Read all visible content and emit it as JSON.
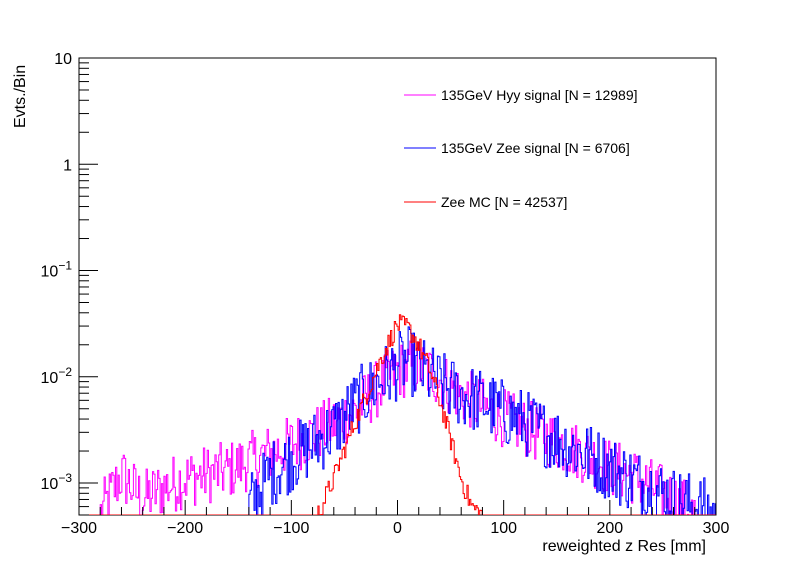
{
  "chart_data": {
    "type": "line",
    "style": "histogram-steps",
    "title": "",
    "xlabel": "reweighted z Res [mm]",
    "ylabel": "Evts./Bin",
    "xlim": [
      -300,
      300
    ],
    "ylim": [
      0.0005,
      10
    ],
    "yscale": "log",
    "grid": false,
    "x_ticks": [
      -300,
      -200,
      -100,
      0,
      100,
      200,
      300
    ],
    "x_tick_labels": [
      "−300",
      "−200",
      "−100",
      "0",
      "100",
      "200",
      "300"
    ],
    "y_tick_labels": [
      {
        "value": 10,
        "base": "10",
        "exp": ""
      },
      {
        "value": 1,
        "base": "1",
        "exp": ""
      },
      {
        "value": 0.1,
        "base": "10",
        "exp": "−1"
      },
      {
        "value": 0.01,
        "base": "10",
        "exp": "−2"
      },
      {
        "value": 0.001,
        "base": "10",
        "exp": "−3"
      }
    ],
    "legend_position": "top-right",
    "series": [
      {
        "name": "135GeV Hyy signal [N = 12989]",
        "color": "#ff00ff",
        "x": [
          -280,
          -260,
          -240,
          -220,
          -200,
          -180,
          -160,
          -140,
          -120,
          -100,
          -80,
          -60,
          -40,
          -20,
          0,
          20,
          40,
          60,
          80,
          100,
          120,
          140,
          160,
          180,
          200,
          220,
          240,
          260,
          280
        ],
        "values": [
          0.0005,
          0.0012,
          0.0007,
          0.0009,
          0.0011,
          0.0012,
          0.0013,
          0.0016,
          0.0019,
          0.0023,
          0.0028,
          0.0036,
          0.0048,
          0.0075,
          0.0115,
          0.0125,
          0.0095,
          0.0068,
          0.0052,
          0.0041,
          0.0033,
          0.0027,
          0.0022,
          0.0018,
          0.0014,
          0.0012,
          0.0009,
          0.0007,
          0.0005
        ]
      },
      {
        "name": "135GeV Zee signal [N = 6706]",
        "color": "#0000ff",
        "x": [
          -140,
          -120,
          -100,
          -80,
          -60,
          -40,
          -20,
          0,
          10,
          20,
          40,
          60,
          80,
          100,
          120,
          140,
          160,
          180,
          200,
          220,
          240,
          260,
          280,
          300
        ],
        "values": [
          0.0006,
          0.0012,
          0.0017,
          0.0023,
          0.0032,
          0.0055,
          0.0085,
          0.0125,
          0.0145,
          0.012,
          0.0085,
          0.0068,
          0.0058,
          0.0046,
          0.0037,
          0.0029,
          0.0023,
          0.0018,
          0.0014,
          0.0011,
          0.0009,
          0.0007,
          0.0006,
          0.0005
        ]
      },
      {
        "name": "Zee MC [N = 42537]",
        "color": "#ff0000",
        "x": [
          -75,
          -60,
          -45,
          -30,
          -15,
          0,
          10,
          20,
          30,
          40,
          50,
          60,
          70,
          80
        ],
        "values": [
          0.0005,
          0.0011,
          0.0028,
          0.0065,
          0.015,
          0.031,
          0.029,
          0.02,
          0.012,
          0.006,
          0.0026,
          0.0011,
          0.0006,
          0.0005
        ]
      }
    ]
  }
}
